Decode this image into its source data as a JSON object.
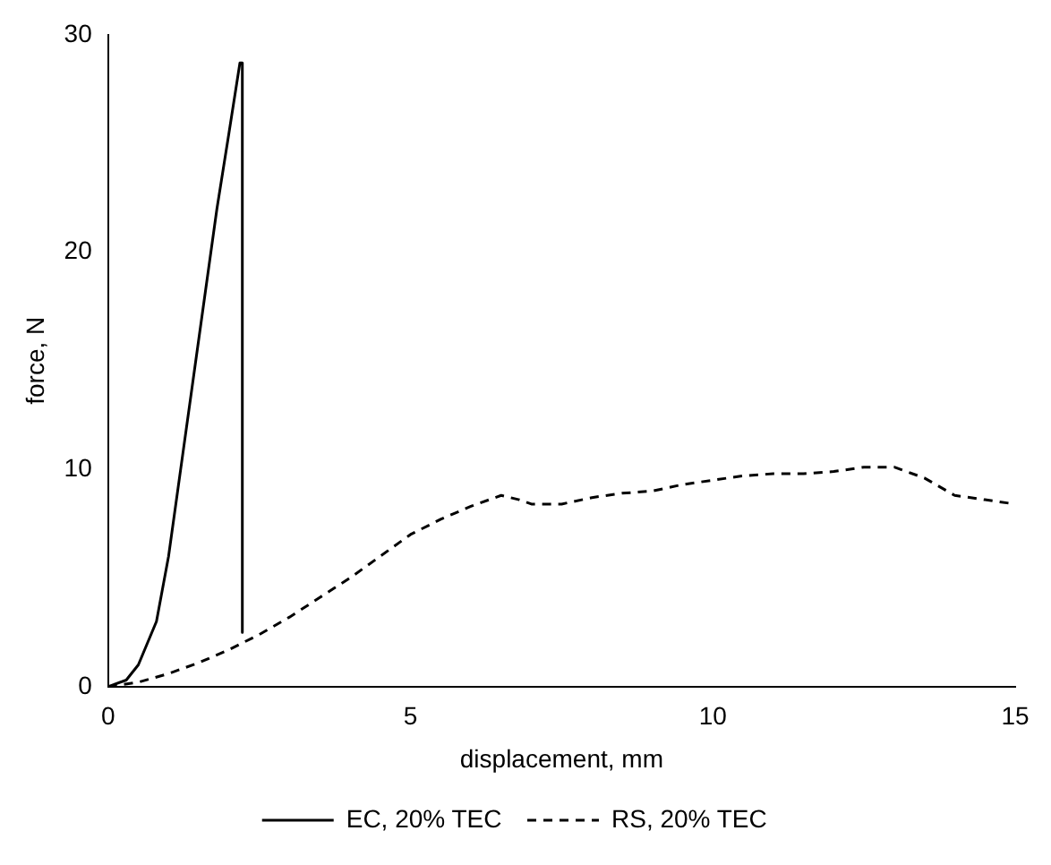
{
  "chart_data": {
    "type": "line",
    "xlabel": "displacement, mm",
    "ylabel": "force, N",
    "xlim": [
      0,
      15
    ],
    "xticks": [
      0,
      5,
      10,
      15
    ],
    "ylim": [
      0,
      30
    ],
    "yticks": [
      0,
      10,
      20,
      30
    ],
    "grid": false,
    "legend": "bottom",
    "marker": "none",
    "series": [
      {
        "name": "EC, 20% TEC",
        "color": "#000000",
        "line_style": "solid",
        "x": [
          0,
          0.3,
          0.5,
          0.8,
          1,
          1.2,
          1.5,
          1.8,
          2,
          2.18,
          2.22,
          2.22
        ],
        "values": [
          0,
          0.3,
          1,
          3,
          6,
          10,
          16,
          22,
          25.5,
          28.7,
          28.7,
          2.5
        ]
      },
      {
        "name": "RS, 20% TEC",
        "color": "#000000",
        "line_style": "dashed",
        "x": [
          0,
          0.5,
          1,
          1.5,
          2,
          2.5,
          3,
          3.5,
          4,
          4.5,
          5,
          5.5,
          6,
          6.5,
          6.8,
          7,
          7.5,
          8,
          8.5,
          9,
          9.5,
          10,
          10.5,
          11,
          11.5,
          12,
          12.5,
          13,
          13.5,
          14,
          14.5,
          15
        ],
        "values": [
          0,
          0.2,
          0.6,
          1.1,
          1.7,
          2.4,
          3.2,
          4.1,
          5,
          6,
          7,
          7.7,
          8.3,
          8.8,
          8.6,
          8.4,
          8.4,
          8.7,
          8.9,
          9,
          9.3,
          9.5,
          9.7,
          9.8,
          9.8,
          9.9,
          10.1,
          10.1,
          9.6,
          8.8,
          8.6,
          8.4
        ]
      }
    ]
  }
}
